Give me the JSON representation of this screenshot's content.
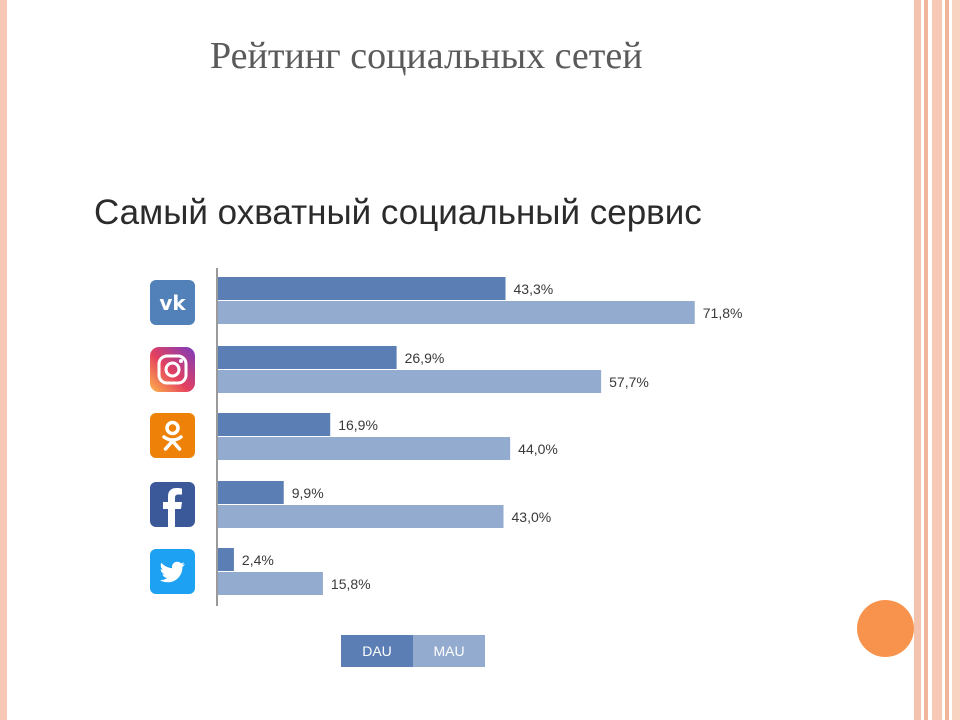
{
  "slide": {
    "title": "Рейтинг социальных сетей"
  },
  "chart_data": {
    "type": "bar",
    "orientation": "horizontal",
    "title": "Самый охватный социальный сервис",
    "categories": [
      "VK",
      "Instagram",
      "Odnoklassniki",
      "Facebook",
      "Twitter"
    ],
    "icons": [
      "vk-icon",
      "instagram-icon",
      "odnoklassniki-icon",
      "facebook-icon",
      "twitter-icon"
    ],
    "series": [
      {
        "name": "DAU",
        "color": "#5b7fb5",
        "values": [
          43.3,
          26.9,
          16.9,
          9.9,
          2.4
        ],
        "labels": [
          "43,3%",
          "26,9%",
          "16,9%",
          "9,9%",
          "2,4%"
        ]
      },
      {
        "name": "MAU",
        "color": "#93abcf",
        "values": [
          71.8,
          57.7,
          44.0,
          43.0,
          15.8
        ],
        "labels": [
          "71,8%",
          "57,7%",
          "44,0%",
          "43,0%",
          "15,8%"
        ]
      }
    ],
    "xlim": [
      0,
      100
    ],
    "grid": false,
    "legend_position": "bottom"
  },
  "legend": {
    "dau": "DAU",
    "mau": "MAU"
  },
  "colors": {
    "vk": "#5181b8",
    "odnoklassniki": "#ee8208",
    "facebook": "#3b5998",
    "twitter": "#1da1f2",
    "accent_circle": "#f7934c"
  }
}
